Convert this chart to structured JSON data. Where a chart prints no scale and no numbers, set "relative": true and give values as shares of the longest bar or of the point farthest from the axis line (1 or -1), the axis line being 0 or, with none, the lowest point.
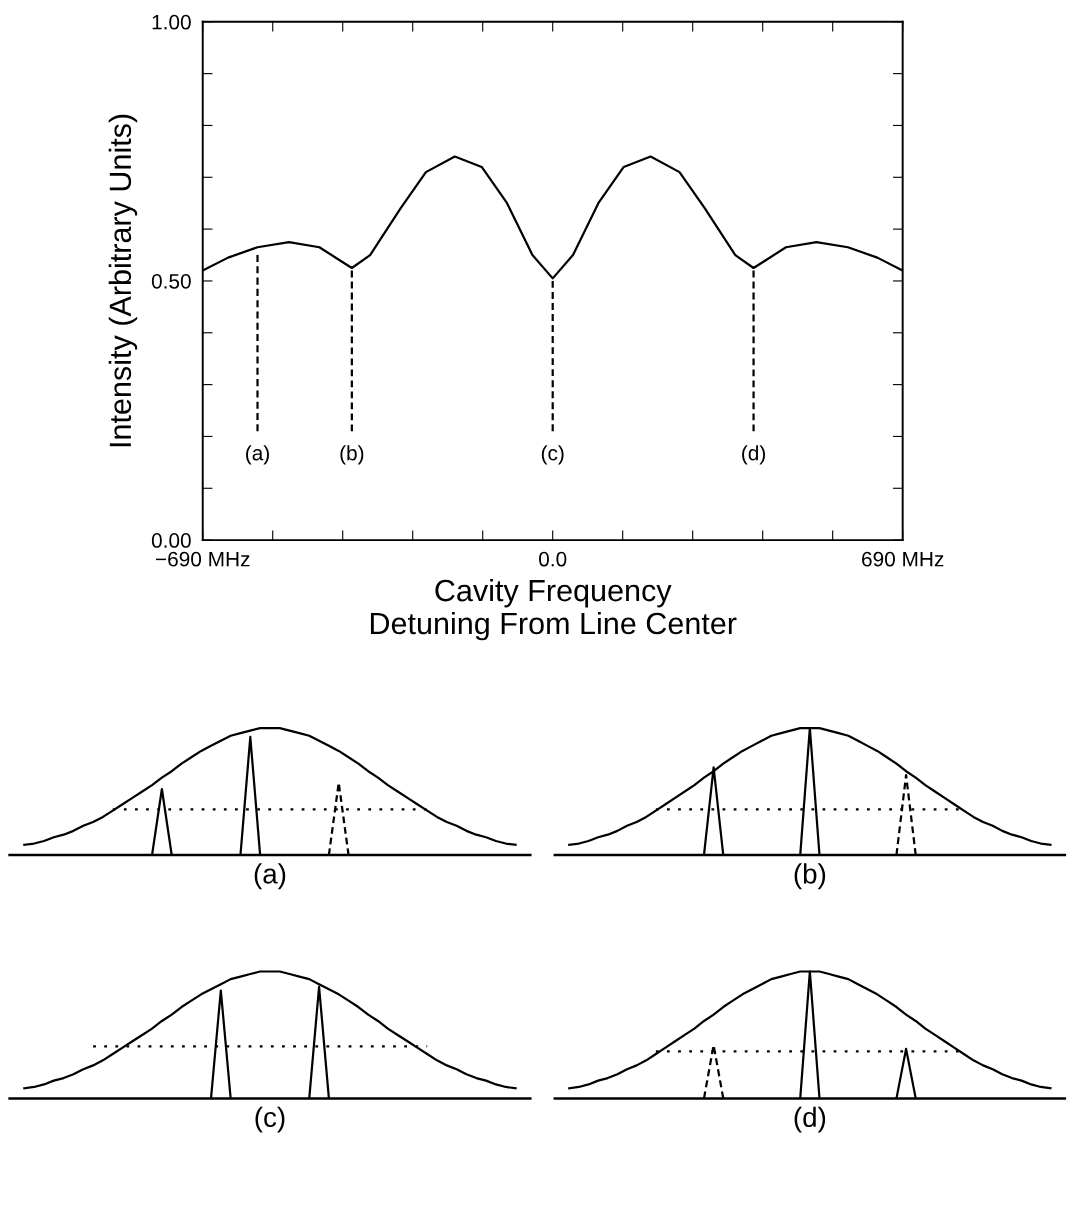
{
  "chart_data": [
    {
      "type": "line",
      "ylabel": "Intensity (Arbitrary Units)",
      "xlabel": "Cavity Frequency\nDetuning From Line Center",
      "xlim": [
        -690,
        690
      ],
      "ylim": [
        0,
        1
      ],
      "xticks": [
        {
          "value": -690,
          "label": "−690 MHz"
        },
        {
          "value": -552,
          "label": null
        },
        {
          "value": -414,
          "label": null
        },
        {
          "value": -276,
          "label": null
        },
        {
          "value": -138,
          "label": null
        },
        {
          "value": 0,
          "label": "0.0"
        },
        {
          "value": 138,
          "label": null
        },
        {
          "value": 276,
          "label": null
        },
        {
          "value": 414,
          "label": null
        },
        {
          "value": 552,
          "label": null
        },
        {
          "value": 690,
          "label": "690 MHz"
        }
      ],
      "yticks": [
        {
          "value": 0,
          "label": "0.00"
        },
        {
          "value": 0.1,
          "label": null
        },
        {
          "value": 0.2,
          "label": null
        },
        {
          "value": 0.3,
          "label": null
        },
        {
          "value": 0.4,
          "label": null
        },
        {
          "value": 0.5,
          "label": "0.50"
        },
        {
          "value": 0.6,
          "label": null
        },
        {
          "value": 0.7,
          "label": null
        },
        {
          "value": 0.8,
          "label": null
        },
        {
          "value": 0.9,
          "label": null
        },
        {
          "value": 1,
          "label": "1.00"
        }
      ],
      "series": [
        {
          "color": "#000000",
          "line_style": "solid",
          "x": [
            -690,
            -640,
            -582,
            -520,
            -460,
            -420,
            -396,
            -360,
            -300,
            -250,
            -193,
            -140,
            -90,
            -40,
            0,
            40,
            90,
            140,
            193,
            250,
            300,
            360,
            396,
            420,
            460,
            520,
            582,
            640,
            690
          ],
          "values": [
            0.52,
            0.545,
            0.565,
            0.575,
            0.565,
            0.54,
            0.525,
            0.55,
            0.64,
            0.71,
            0.74,
            0.72,
            0.65,
            0.55,
            0.505,
            0.55,
            0.65,
            0.72,
            0.74,
            0.71,
            0.64,
            0.55,
            0.525,
            0.54,
            0.565,
            0.575,
            0.565,
            0.545,
            0.52
          ]
        },
        {
          "color": "#000000",
          "line_style": "dashed",
          "x": [
            -582,
            -582
          ],
          "values": [
            0.55,
            0.21
          ]
        },
        {
          "color": "#000000",
          "line_style": "dashed",
          "x": [
            -396,
            -396
          ],
          "values": [
            0.52,
            0.21
          ]
        },
        {
          "color": "#000000",
          "line_style": "dashed",
          "x": [
            0,
            0
          ],
          "values": [
            0.5,
            0.21
          ]
        },
        {
          "color": "#000000",
          "line_style": "dashed",
          "x": [
            396,
            396
          ],
          "values": [
            0.52,
            0.21
          ]
        }
      ],
      "annotations": [
        "(a)",
        "(b)",
        "(c)",
        "(d)"
      ]
    },
    {
      "type": "line",
      "relative": true,
      "xlabel": "(a)",
      "tick_labels": false,
      "categories": [
        null,
        null,
        null,
        null,
        null,
        null,
        null,
        null,
        null,
        null,
        null,
        null,
        null,
        null,
        null,
        null,
        null,
        null,
        null,
        null,
        null,
        null,
        null,
        null,
        null,
        null,
        null,
        null,
        null,
        null,
        null,
        null,
        null,
        null,
        null,
        null,
        null,
        null,
        null,
        null,
        null,
        null,
        null,
        null,
        null,
        null,
        null,
        null,
        null,
        null,
        null
      ],
      "series": [
        {
          "color": "#000000",
          "line_style": "solid",
          "values": [
            0.08,
            0.09,
            0.11,
            0.14,
            0.16,
            0.19,
            0.23,
            0.26,
            0.3,
            0.35,
            0.4,
            0.45,
            0.5,
            0.55,
            0.61,
            0.66,
            0.72,
            0.77,
            0.82,
            0.86,
            0.9,
            0.94,
            0.96,
            0.98,
            1,
            1,
            1,
            0.98,
            0.96,
            0.94,
            0.9,
            0.86,
            0.82,
            0.77,
            0.72,
            0.66,
            0.61,
            0.55,
            0.5,
            0.45,
            0.4,
            0.35,
            0.3,
            0.26,
            0.23,
            0.19,
            0.16,
            0.14,
            0.11,
            0.09,
            0.08
          ]
        },
        {
          "color": "#000000",
          "line_style": "dotted",
          "values": [
            null,
            null,
            null,
            null,
            null,
            null,
            null,
            null,
            null,
            0.36,
            0.36,
            0.36,
            0.36,
            0.36,
            0.36,
            0.36,
            0.36,
            0.36,
            0.36,
            0.36,
            0.36,
            0.36,
            0.36,
            0.36,
            0.36,
            0.36,
            0.36,
            0.36,
            0.36,
            0.36,
            0.36,
            0.36,
            0.36,
            0.36,
            0.36,
            0.36,
            0.36,
            0.36,
            0.36,
            0.36,
            0.36,
            0.36,
            null,
            null,
            null,
            null,
            null,
            null,
            null,
            null,
            null
          ]
        },
        {
          "color": "#000000",
          "line_style": "solid",
          "values": [
            null,
            null,
            null,
            null,
            null,
            null,
            null,
            null,
            null,
            null,
            null,
            null,
            null,
            0,
            0.52,
            0,
            null,
            null,
            null,
            null,
            null,
            null,
            null,
            null,
            null,
            null,
            null,
            null,
            null,
            null,
            null,
            null,
            null,
            null,
            null,
            null,
            null,
            null,
            null,
            null,
            null,
            null,
            null,
            null,
            null,
            null,
            null,
            null,
            null,
            null,
            null
          ]
        },
        {
          "color": "#000000",
          "line_style": "solid",
          "values": [
            null,
            null,
            null,
            null,
            null,
            null,
            null,
            null,
            null,
            null,
            null,
            null,
            null,
            null,
            null,
            null,
            null,
            null,
            null,
            null,
            null,
            null,
            0,
            0.93,
            0,
            null,
            null,
            null,
            null,
            null,
            null,
            null,
            null,
            null,
            null,
            null,
            null,
            null,
            null,
            null,
            null,
            null,
            null,
            null,
            null,
            null,
            null,
            null,
            null,
            null,
            null
          ]
        },
        {
          "color": "#000000",
          "line_style": "dashed",
          "values": [
            null,
            null,
            null,
            null,
            null,
            null,
            null,
            null,
            null,
            null,
            null,
            null,
            null,
            null,
            null,
            null,
            null,
            null,
            null,
            null,
            null,
            null,
            null,
            null,
            null,
            null,
            null,
            null,
            null,
            null,
            null,
            0,
            0.57,
            0,
            null,
            null,
            null,
            null,
            null,
            null,
            null,
            null,
            null,
            null,
            null,
            null,
            null,
            null,
            null,
            null,
            null
          ]
        }
      ]
    },
    {
      "type": "line",
      "relative": true,
      "xlabel": "(b)",
      "tick_labels": false,
      "categories": [
        null,
        null,
        null,
        null,
        null,
        null,
        null,
        null,
        null,
        null,
        null,
        null,
        null,
        null,
        null,
        null,
        null,
        null,
        null,
        null,
        null,
        null,
        null,
        null,
        null,
        null,
        null,
        null,
        null,
        null,
        null,
        null,
        null,
        null,
        null,
        null,
        null,
        null,
        null,
        null,
        null,
        null,
        null,
        null,
        null,
        null,
        null,
        null,
        null,
        null,
        null
      ],
      "series": [
        {
          "color": "#000000",
          "line_style": "solid",
          "values": [
            0.08,
            0.09,
            0.11,
            0.14,
            0.16,
            0.19,
            0.23,
            0.26,
            0.3,
            0.35,
            0.4,
            0.45,
            0.5,
            0.55,
            0.61,
            0.66,
            0.72,
            0.77,
            0.82,
            0.86,
            0.9,
            0.94,
            0.96,
            0.98,
            1,
            1,
            1,
            0.98,
            0.96,
            0.94,
            0.9,
            0.86,
            0.82,
            0.77,
            0.72,
            0.66,
            0.61,
            0.55,
            0.5,
            0.45,
            0.4,
            0.35,
            0.3,
            0.26,
            0.23,
            0.19,
            0.16,
            0.14,
            0.11,
            0.09,
            0.08
          ]
        },
        {
          "color": "#000000",
          "line_style": "dotted",
          "values": [
            null,
            null,
            null,
            null,
            null,
            null,
            null,
            null,
            null,
            0.36,
            0.36,
            0.36,
            0.36,
            0.36,
            0.36,
            0.36,
            0.36,
            0.36,
            0.36,
            0.36,
            0.36,
            0.36,
            0.36,
            0.36,
            0.36,
            0.36,
            0.36,
            0.36,
            0.36,
            0.36,
            0.36,
            0.36,
            0.36,
            0.36,
            0.36,
            0.36,
            0.36,
            0.36,
            0.36,
            0.36,
            0.36,
            0.36,
            null,
            null,
            null,
            null,
            null,
            null,
            null,
            null,
            null
          ]
        },
        {
          "color": "#000000",
          "line_style": "solid",
          "values": [
            null,
            null,
            null,
            null,
            null,
            null,
            null,
            null,
            null,
            null,
            null,
            null,
            null,
            null,
            0,
            0.69,
            0,
            null,
            null,
            null,
            null,
            null,
            null,
            null,
            null,
            null,
            null,
            null,
            null,
            null,
            null,
            null,
            null,
            null,
            null,
            null,
            null,
            null,
            null,
            null,
            null,
            null,
            null,
            null,
            null,
            null,
            null,
            null,
            null,
            null,
            null
          ]
        },
        {
          "color": "#000000",
          "line_style": "solid",
          "values": [
            null,
            null,
            null,
            null,
            null,
            null,
            null,
            null,
            null,
            null,
            null,
            null,
            null,
            null,
            null,
            null,
            null,
            null,
            null,
            null,
            null,
            null,
            null,
            null,
            0,
            1,
            0,
            null,
            null,
            null,
            null,
            null,
            null,
            null,
            null,
            null,
            null,
            null,
            null,
            null,
            null,
            null,
            null,
            null,
            null,
            null,
            null,
            null,
            null,
            null,
            null
          ]
        },
        {
          "color": "#000000",
          "line_style": "dashed",
          "values": [
            null,
            null,
            null,
            null,
            null,
            null,
            null,
            null,
            null,
            null,
            null,
            null,
            null,
            null,
            null,
            null,
            null,
            null,
            null,
            null,
            null,
            null,
            null,
            null,
            null,
            null,
            null,
            null,
            null,
            null,
            null,
            null,
            null,
            null,
            0,
            0.63,
            0,
            null,
            null,
            null,
            null,
            null,
            null,
            null,
            null,
            null,
            null,
            null,
            null,
            null,
            null
          ]
        }
      ]
    },
    {
      "type": "line",
      "relative": true,
      "xlabel": "(c)",
      "tick_labels": false,
      "categories": [
        null,
        null,
        null,
        null,
        null,
        null,
        null,
        null,
        null,
        null,
        null,
        null,
        null,
        null,
        null,
        null,
        null,
        null,
        null,
        null,
        null,
        null,
        null,
        null,
        null,
        null,
        null,
        null,
        null,
        null,
        null,
        null,
        null,
        null,
        null,
        null,
        null,
        null,
        null,
        null,
        null,
        null,
        null,
        null,
        null,
        null,
        null,
        null,
        null,
        null,
        null
      ],
      "series": [
        {
          "color": "#000000",
          "line_style": "solid",
          "values": [
            0.08,
            0.09,
            0.11,
            0.14,
            0.16,
            0.19,
            0.23,
            0.26,
            0.3,
            0.35,
            0.4,
            0.45,
            0.5,
            0.55,
            0.61,
            0.66,
            0.72,
            0.77,
            0.82,
            0.86,
            0.9,
            0.94,
            0.96,
            0.98,
            1,
            1,
            1,
            0.98,
            0.96,
            0.94,
            0.9,
            0.86,
            0.82,
            0.77,
            0.72,
            0.66,
            0.61,
            0.55,
            0.5,
            0.45,
            0.4,
            0.35,
            0.3,
            0.26,
            0.23,
            0.19,
            0.16,
            0.14,
            0.11,
            0.09,
            0.08
          ]
        },
        {
          "color": "#000000",
          "line_style": "dotted",
          "values": [
            null,
            null,
            null,
            null,
            null,
            null,
            null,
            0.41,
            0.41,
            0.41,
            0.41,
            0.41,
            0.41,
            0.41,
            0.41,
            0.41,
            0.41,
            0.41,
            0.41,
            0.41,
            0.41,
            0.41,
            0.41,
            0.41,
            0.41,
            0.41,
            0.41,
            0.41,
            0.41,
            0.41,
            0.41,
            0.41,
            0.41,
            0.41,
            0.41,
            0.41,
            0.41,
            0.41,
            0.41,
            0.41,
            0.41,
            0.41,
            null,
            null,
            null,
            null,
            null,
            null,
            null,
            null,
            null
          ]
        },
        {
          "color": "#000000",
          "line_style": "solid",
          "values": [
            null,
            null,
            null,
            null,
            null,
            null,
            null,
            null,
            null,
            null,
            null,
            null,
            null,
            null,
            null,
            null,
            null,
            null,
            null,
            0,
            0.85,
            0,
            null,
            null,
            null,
            null,
            null,
            null,
            null,
            null,
            null,
            null,
            null,
            null,
            null,
            null,
            null,
            null,
            null,
            null,
            null,
            null,
            null,
            null,
            null,
            null,
            null,
            null,
            null,
            null,
            null
          ]
        },
        {
          "color": "#000000",
          "line_style": "solid",
          "values": [
            null,
            null,
            null,
            null,
            null,
            null,
            null,
            null,
            null,
            null,
            null,
            null,
            null,
            null,
            null,
            null,
            null,
            null,
            null,
            null,
            null,
            null,
            null,
            null,
            null,
            null,
            null,
            null,
            null,
            0,
            0.88,
            0,
            null,
            null,
            null,
            null,
            null,
            null,
            null,
            null,
            null,
            null,
            null,
            null,
            null,
            null,
            null,
            null,
            null,
            null,
            null
          ]
        }
      ]
    },
    {
      "type": "line",
      "relative": true,
      "xlabel": "(d)",
      "tick_labels": false,
      "categories": [
        null,
        null,
        null,
        null,
        null,
        null,
        null,
        null,
        null,
        null,
        null,
        null,
        null,
        null,
        null,
        null,
        null,
        null,
        null,
        null,
        null,
        null,
        null,
        null,
        null,
        null,
        null,
        null,
        null,
        null,
        null,
        null,
        null,
        null,
        null,
        null,
        null,
        null,
        null,
        null,
        null,
        null,
        null,
        null,
        null,
        null,
        null,
        null,
        null,
        null,
        null
      ],
      "series": [
        {
          "color": "#000000",
          "line_style": "solid",
          "values": [
            0.08,
            0.09,
            0.11,
            0.14,
            0.16,
            0.19,
            0.23,
            0.26,
            0.3,
            0.35,
            0.4,
            0.45,
            0.5,
            0.55,
            0.61,
            0.66,
            0.72,
            0.77,
            0.82,
            0.86,
            0.9,
            0.94,
            0.96,
            0.98,
            1,
            1,
            1,
            0.98,
            0.96,
            0.94,
            0.9,
            0.86,
            0.82,
            0.77,
            0.72,
            0.66,
            0.61,
            0.55,
            0.5,
            0.45,
            0.4,
            0.35,
            0.3,
            0.26,
            0.23,
            0.19,
            0.16,
            0.14,
            0.11,
            0.09,
            0.08
          ]
        },
        {
          "color": "#000000",
          "line_style": "dotted",
          "values": [
            null,
            null,
            null,
            null,
            null,
            null,
            null,
            null,
            null,
            0.37,
            0.37,
            0.37,
            0.37,
            0.37,
            0.37,
            0.37,
            0.37,
            0.37,
            0.37,
            0.37,
            0.37,
            0.37,
            0.37,
            0.37,
            0.37,
            0.37,
            0.37,
            0.37,
            0.37,
            0.37,
            0.37,
            0.37,
            0.37,
            0.37,
            0.37,
            0.37,
            0.37,
            0.37,
            0.37,
            0.37,
            0.37,
            0.37,
            null,
            null,
            null,
            null,
            null,
            null,
            null,
            null,
            null
          ]
        },
        {
          "color": "#000000",
          "line_style": "dashed",
          "values": [
            null,
            null,
            null,
            null,
            null,
            null,
            null,
            null,
            null,
            null,
            null,
            null,
            null,
            null,
            0,
            0.42,
            0,
            null,
            null,
            null,
            null,
            null,
            null,
            null,
            null,
            null,
            null,
            null,
            null,
            null,
            null,
            null,
            null,
            null,
            null,
            null,
            null,
            null,
            null,
            null,
            null,
            null,
            null,
            null,
            null,
            null,
            null,
            null,
            null,
            null,
            null
          ]
        },
        {
          "color": "#000000",
          "line_style": "solid",
          "values": [
            null,
            null,
            null,
            null,
            null,
            null,
            null,
            null,
            null,
            null,
            null,
            null,
            null,
            null,
            null,
            null,
            null,
            null,
            null,
            null,
            null,
            null,
            null,
            null,
            0,
            1,
            0,
            null,
            null,
            null,
            null,
            null,
            null,
            null,
            null,
            null,
            null,
            null,
            null,
            null,
            null,
            null,
            null,
            null,
            null,
            null,
            null,
            null,
            null,
            null,
            null
          ]
        },
        {
          "color": "#000000",
          "line_style": "solid",
          "values": [
            null,
            null,
            null,
            null,
            null,
            null,
            null,
            null,
            null,
            null,
            null,
            null,
            null,
            null,
            null,
            null,
            null,
            null,
            null,
            null,
            null,
            null,
            null,
            null,
            null,
            null,
            null,
            null,
            null,
            null,
            null,
            null,
            null,
            null,
            0,
            0.39,
            0,
            null,
            null,
            null,
            null,
            null,
            null,
            null,
            null,
            null,
            null,
            null,
            null,
            null,
            null
          ]
        }
      ]
    }
  ]
}
